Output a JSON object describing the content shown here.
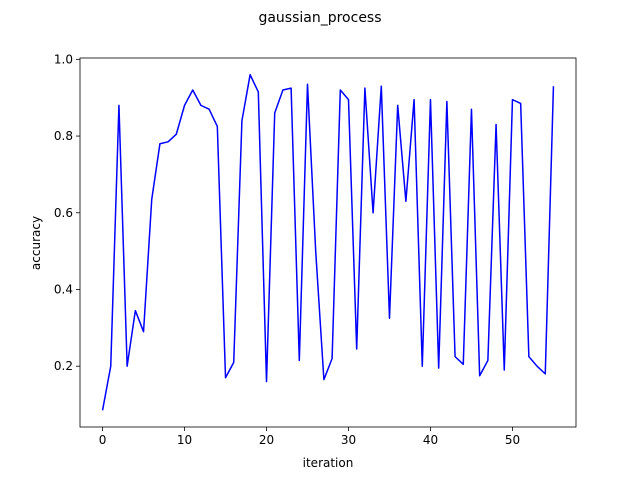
{
  "chart_data": {
    "type": "line",
    "title": "gaussian_process",
    "xlabel": "iteration",
    "ylabel": "accuracy",
    "xlim": [
      -2.75,
      57.75
    ],
    "ylim": [
      0.0415,
      1.0035
    ],
    "xticks": [
      0,
      10,
      20,
      30,
      40,
      50
    ],
    "yticks": [
      0.2,
      0.4,
      0.6,
      0.8,
      1.0
    ],
    "grid": false,
    "series": [
      {
        "color": "#0000ff",
        "x": [
          0,
          1,
          2,
          3,
          4,
          5,
          6,
          7,
          8,
          9,
          10,
          11,
          12,
          13,
          14,
          15,
          16,
          17,
          18,
          19,
          20,
          21,
          22,
          23,
          24,
          25,
          26,
          27,
          28,
          29,
          30,
          31,
          32,
          33,
          34,
          35,
          36,
          37,
          38,
          39,
          40,
          41,
          42,
          43,
          44,
          45,
          46,
          47,
          48,
          49,
          50,
          51,
          52,
          53,
          54,
          55
        ],
        "y": [
          0.085,
          0.2,
          0.88,
          0.2,
          0.345,
          0.29,
          0.635,
          0.78,
          0.785,
          0.805,
          0.88,
          0.92,
          0.88,
          0.87,
          0.825,
          0.17,
          0.21,
          0.84,
          0.96,
          0.915,
          0.16,
          0.86,
          0.92,
          0.925,
          0.215,
          0.935,
          0.5,
          0.165,
          0.22,
          0.92,
          0.895,
          0.245,
          0.925,
          0.6,
          0.93,
          0.325,
          0.88,
          0.63,
          0.895,
          0.2,
          0.895,
          0.195,
          0.89,
          0.225,
          0.205,
          0.87,
          0.175,
          0.215,
          0.83,
          0.19,
          0.895,
          0.885,
          0.225,
          0.2,
          0.18,
          0.93
        ]
      }
    ]
  }
}
